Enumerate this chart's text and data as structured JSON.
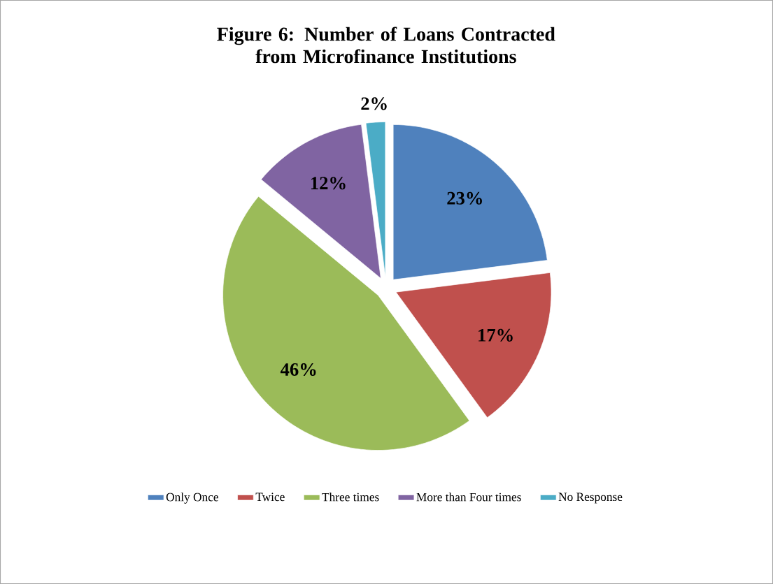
{
  "chart_data": {
    "type": "pie",
    "title": "Figure 6: Number of Loans Contracted from Microfinance Institutions",
    "categories": [
      "Only Once",
      "Twice",
      "Three times",
      "More than Four times",
      "No Response"
    ],
    "values": [
      23,
      17,
      46,
      12,
      2
    ],
    "colors": [
      "#4f81bd",
      "#c0504d",
      "#9bbb59",
      "#8064a2",
      "#4bacc6"
    ],
    "value_labels": [
      "23%",
      "17%",
      "46%",
      "12%",
      "2%"
    ],
    "legend": "bottom"
  }
}
